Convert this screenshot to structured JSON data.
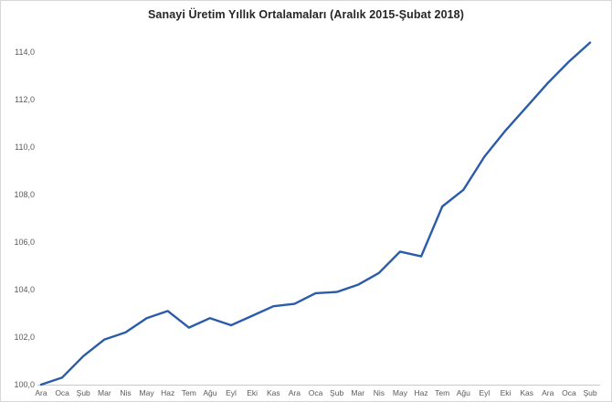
{
  "chart_data": {
    "type": "line",
    "title": "Sanayi Üretim Yıllık Ortalamaları (Aralık 2015-Şubat 2018)",
    "categories": [
      "Ara",
      "Oca",
      "Şub",
      "Mar",
      "Nis",
      "May",
      "Haz",
      "Tem",
      "Ağu",
      "Eyl",
      "Eki",
      "Kas",
      "Ara",
      "Oca",
      "Şub",
      "Mar",
      "Nis",
      "May",
      "Haz",
      "Tem",
      "Ağu",
      "Eyl",
      "Eki",
      "Kas",
      "Ara",
      "Oca",
      "Şub"
    ],
    "values": [
      100.0,
      100.3,
      101.2,
      101.9,
      102.2,
      102.8,
      103.1,
      102.4,
      102.8,
      102.5,
      102.9,
      103.3,
      103.4,
      103.85,
      103.9,
      104.2,
      104.7,
      105.6,
      105.4,
      107.5,
      108.2,
      109.6,
      110.7,
      111.7,
      112.7,
      113.6,
      114.4
    ],
    "xlabel": "",
    "ylabel": "",
    "ylim": [
      100,
      114
    ],
    "ytick_values": [
      100,
      102,
      104,
      106,
      108,
      110,
      112,
      114
    ],
    "ytick_labels": [
      "100,0",
      "102,0",
      "104,0",
      "106,0",
      "108,0",
      "110,0",
      "112,0",
      "114,0"
    ],
    "grid": false,
    "legend_position": "none",
    "line_color": "#2A5CAA",
    "axis_line_color": "#C9C9C9",
    "tick_label_color": "#595959",
    "title_color": "#262626"
  }
}
